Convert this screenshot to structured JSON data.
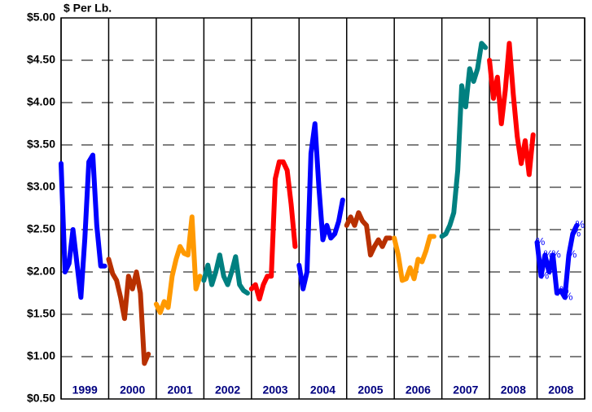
{
  "chart_data": {
    "type": "line",
    "y_label": "$ Per Lb.",
    "xlim": [
      0,
      132
    ],
    "xticks": [
      0,
      12,
      24,
      36,
      48,
      60,
      72,
      84,
      96,
      108,
      120,
      132
    ],
    "ylim": [
      0.5,
      5
    ],
    "yticks": [
      {
        "value": 0.5,
        "label": "$0.50"
      },
      {
        "value": 1,
        "label": "$1.00"
      },
      {
        "value": 1.5,
        "label": "$1.50"
      },
      {
        "value": 2,
        "label": "$2.00"
      },
      {
        "value": 2.5,
        "label": "$2.50"
      },
      {
        "value": 3,
        "label": "$3.00"
      },
      {
        "value": 3.5,
        "label": "$3.50"
      },
      {
        "value": 4,
        "label": "$4.00"
      },
      {
        "value": 4.5,
        "label": "$4.50"
      },
      {
        "value": 5,
        "label": "$5.00"
      }
    ],
    "grid": true,
    "series": [
      {
        "name": "1999",
        "color": "#0000ff",
        "x": [
          0,
          1,
          2,
          3,
          4,
          5,
          6,
          7,
          8,
          9,
          10,
          11
        ],
        "values": [
          3.28,
          2.0,
          2.1,
          2.5,
          2.1,
          1.7,
          2.4,
          3.3,
          3.38,
          2.55,
          2.07,
          2.07
        ]
      },
      {
        "name": "2000",
        "color": "#b83000",
        "x": [
          12,
          13,
          14,
          15,
          16,
          17,
          18,
          19,
          20,
          21,
          22
        ],
        "values": [
          2.15,
          1.98,
          1.9,
          1.7,
          1.45,
          1.95,
          1.8,
          2.0,
          1.75,
          0.92,
          1.03
        ]
      },
      {
        "name": "2001",
        "color": "#ff9900",
        "x": [
          24,
          25,
          26,
          27,
          28,
          29,
          30,
          31,
          32,
          33,
          34,
          35
        ],
        "values": [
          1.62,
          1.52,
          1.65,
          1.58,
          1.95,
          2.15,
          2.3,
          2.22,
          2.2,
          2.65,
          1.8,
          1.95
        ]
      },
      {
        "name": "2002",
        "color": "#008080",
        "x": [
          36,
          37,
          38,
          39,
          40,
          41,
          42,
          43,
          44,
          45,
          46,
          47
        ],
        "values": [
          1.9,
          2.08,
          1.85,
          2.0,
          2.2,
          1.95,
          1.85,
          2.0,
          2.18,
          1.85,
          1.78,
          1.75
        ]
      },
      {
        "name": "2003",
        "color": "#ff0000",
        "x": [
          48,
          49,
          50,
          51,
          52,
          53,
          54,
          55,
          56,
          57,
          58,
          59
        ],
        "values": [
          1.8,
          1.85,
          1.68,
          1.85,
          1.95,
          1.95,
          3.1,
          3.3,
          3.3,
          3.2,
          2.8,
          2.3
        ]
      },
      {
        "name": "2004",
        "color": "#0000ff",
        "x": [
          60,
          61,
          62,
          63,
          64,
          65,
          66,
          67,
          68,
          69,
          70,
          71
        ],
        "values": [
          2.08,
          1.8,
          2.0,
          3.4,
          3.75,
          3.0,
          2.38,
          2.55,
          2.4,
          2.45,
          2.6,
          2.85
        ]
      },
      {
        "name": "2005",
        "color": "#b83000",
        "x": [
          72,
          73,
          74,
          75,
          76,
          77,
          78,
          79,
          80,
          81,
          82,
          83
        ],
        "values": [
          2.55,
          2.65,
          2.55,
          2.7,
          2.6,
          2.55,
          2.2,
          2.3,
          2.38,
          2.3,
          2.4,
          2.4
        ]
      },
      {
        "name": "2006",
        "color": "#ff9900",
        "x": [
          84,
          85,
          86,
          87,
          88,
          89,
          90,
          91,
          92,
          93,
          94
        ],
        "values": [
          2.4,
          2.2,
          1.9,
          1.92,
          2.05,
          1.92,
          2.15,
          2.12,
          2.25,
          2.42,
          2.42
        ]
      },
      {
        "name": "2007",
        "color": "#008080",
        "x": [
          96,
          97,
          98,
          99,
          100,
          101,
          102,
          103,
          104,
          105,
          106,
          107
        ],
        "values": [
          2.42,
          2.45,
          2.55,
          2.7,
          3.2,
          4.2,
          3.95,
          4.4,
          4.25,
          4.4,
          4.7,
          4.65
        ]
      },
      {
        "name": "2008",
        "color": "#ff0000",
        "x": [
          108,
          109,
          110,
          111,
          112,
          113,
          114,
          115,
          116,
          117,
          118,
          119
        ],
        "values": [
          4.5,
          4.05,
          4.3,
          3.75,
          4.15,
          4.7,
          4.1,
          3.6,
          3.28,
          3.55,
          3.15,
          3.62
        ]
      },
      {
        "name": "2008",
        "color": "#0000ff",
        "marker": "%",
        "x": [
          120,
          121,
          122,
          123,
          124,
          125,
          126,
          127,
          128,
          129,
          130
        ],
        "values": [
          2.35,
          1.95,
          2.2,
          2.0,
          2.2,
          1.75,
          1.78,
          1.7,
          2.2,
          2.45,
          2.55
        ]
      }
    ]
  }
}
